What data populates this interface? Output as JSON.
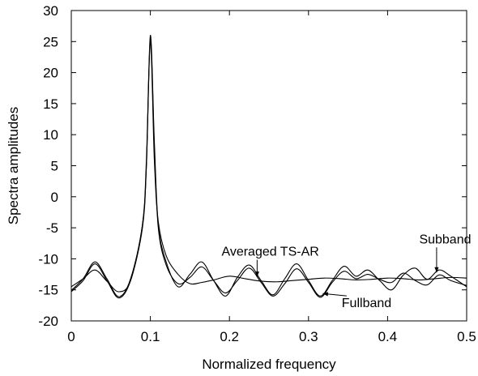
{
  "chart_data": {
    "type": "line",
    "title": "",
    "xlabel": "Normalized frequency",
    "ylabel": "Spectra amplitudes",
    "xlim": [
      0,
      0.5
    ],
    "ylim": [
      -20,
      30
    ],
    "xticks": [
      0,
      0.1,
      0.2,
      0.3,
      0.4,
      0.5
    ],
    "xtick_labels": [
      "0",
      "0.1",
      "0.2",
      "0.3",
      "0.4",
      "0.5"
    ],
    "yticks": [
      -20,
      -15,
      -10,
      -5,
      0,
      5,
      10,
      15,
      20,
      25,
      30
    ],
    "ytick_labels": [
      "-20",
      "-15",
      "-10",
      "-5",
      "0",
      "5",
      "10",
      "15",
      "20",
      "25",
      "30"
    ],
    "grid": false,
    "legend": "none",
    "line_color": "#000000",
    "series": [
      {
        "name": "Averaged TS-AR",
        "x": [
          0,
          0.015,
          0.03,
          0.045,
          0.06,
          0.075,
          0.09,
          0.095,
          0.1,
          0.105,
          0.11,
          0.12,
          0.135,
          0.15,
          0.165,
          0.18,
          0.2,
          0.22,
          0.24,
          0.26,
          0.28,
          0.3,
          0.32,
          0.34,
          0.36,
          0.38,
          0.4,
          0.42,
          0.44,
          0.46,
          0.48,
          0.5
        ],
        "y": [
          -14.5,
          -13.2,
          -11.8,
          -13.6,
          -15.3,
          -13.5,
          -4.5,
          5,
          25,
          6,
          -4,
          -9.5,
          -12.5,
          -14,
          -13.8,
          -13.4,
          -12.8,
          -13.2,
          -13.6,
          -13.7,
          -13.5,
          -13.3,
          -13.1,
          -13.2,
          -13.4,
          -13.3,
          -13.1,
          -13.2,
          -13.4,
          -13.2,
          -13.0,
          -13.1
        ]
      },
      {
        "name": "Fullband",
        "x": [
          0,
          0.015,
          0.03,
          0.045,
          0.06,
          0.075,
          0.09,
          0.095,
          0.1,
          0.105,
          0.11,
          0.12,
          0.135,
          0.15,
          0.165,
          0.18,
          0.195,
          0.21,
          0.225,
          0.24,
          0.255,
          0.27,
          0.285,
          0.3,
          0.315,
          0.33,
          0.345,
          0.36,
          0.375,
          0.39,
          0.405,
          0.42,
          0.435,
          0.45,
          0.465,
          0.48,
          0.5
        ],
        "y": [
          -15.3,
          -13.5,
          -10.8,
          -13.5,
          -16.3,
          -13.5,
          -5,
          5,
          25.5,
          8,
          -5,
          -11,
          -14,
          -13,
          -11.3,
          -13.5,
          -15.5,
          -13.5,
          -11.5,
          -13.8,
          -16,
          -14,
          -11.6,
          -13.8,
          -16.2,
          -13.8,
          -12,
          -13.2,
          -12.5,
          -13.3,
          -13.8,
          -12.3,
          -13.5,
          -14.2,
          -12.6,
          -13.5,
          -14.3
        ]
      },
      {
        "name": "Subband",
        "x": [
          0,
          0.015,
          0.03,
          0.045,
          0.06,
          0.075,
          0.09,
          0.095,
          0.1,
          0.105,
          0.11,
          0.12,
          0.135,
          0.15,
          0.165,
          0.18,
          0.195,
          0.21,
          0.225,
          0.24,
          0.255,
          0.27,
          0.285,
          0.3,
          0.315,
          0.33,
          0.345,
          0.36,
          0.375,
          0.39,
          0.405,
          0.42,
          0.435,
          0.45,
          0.465,
          0.48,
          0.5
        ],
        "y": [
          -15.1,
          -13.2,
          -10.5,
          -13.2,
          -16.1,
          -13.2,
          -4.5,
          6,
          26,
          9,
          -4.5,
          -10.5,
          -14.5,
          -12.5,
          -10.5,
          -13.5,
          -16,
          -13,
          -11,
          -13.5,
          -15.8,
          -13.2,
          -10.8,
          -13.5,
          -16,
          -13.5,
          -11.2,
          -12.8,
          -11.8,
          -13.5,
          -15,
          -12.6,
          -11.5,
          -13.3,
          -11.8,
          -12.8,
          -14.5
        ]
      }
    ],
    "annotations": [
      {
        "text": "Averaged TS-AR",
        "x": 0.19,
        "y": -9.5,
        "arrow_to": [
          0.235,
          -12.9
        ]
      },
      {
        "text": "Subband",
        "x": 0.44,
        "y": -7.5,
        "arrow_to": [
          0.462,
          -12.2
        ]
      },
      {
        "text": "Fullband",
        "x": 0.342,
        "y": -17.8,
        "arrow_to": [
          0.318,
          -15.6
        ]
      }
    ]
  }
}
